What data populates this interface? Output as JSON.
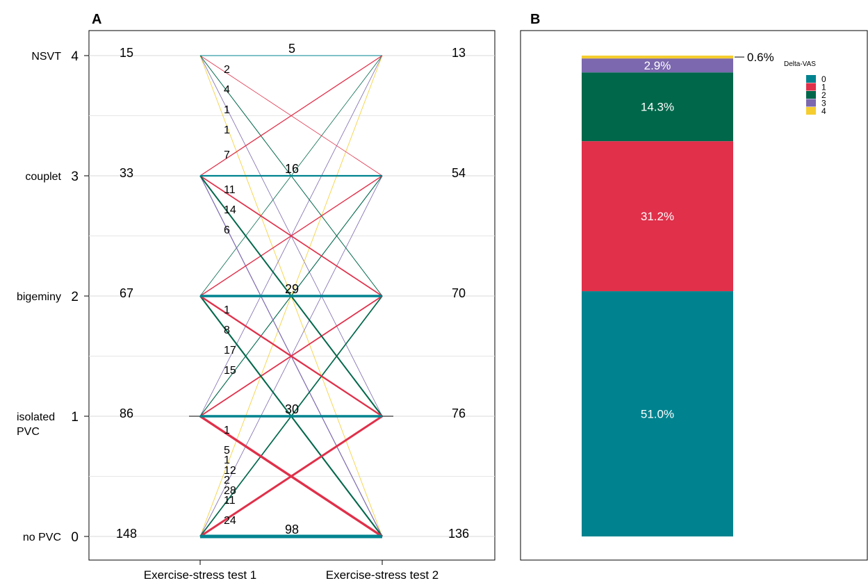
{
  "panel_a_letter": "A",
  "panel_b_letter": "B",
  "chart_data": [
    {
      "type": "line",
      "panel": "A",
      "x_categories": [
        "Exercise-stress test 1",
        "Exercise-stress test 2"
      ],
      "y_levels": [
        {
          "value": 0,
          "label": "no PVC"
        },
        {
          "value": 1,
          "label": "isolated PVC"
        },
        {
          "value": 2,
          "label": "bigeminy"
        },
        {
          "value": 3,
          "label": "couplet"
        },
        {
          "value": 4,
          "label": "NSVT"
        }
      ],
      "ylim": [
        0,
        4
      ],
      "totals_test1": {
        "4": "15",
        "3": "33",
        "2": "67",
        "1": "86",
        "0": "148"
      },
      "totals_test2": {
        "4": "13",
        "3": "54",
        "2": "70",
        "1": "76",
        "0": "136"
      },
      "colors": {
        "0": "#00838F",
        "1": "#E0304A",
        "2": "#00674A",
        "3": "#7B68AE",
        "4": "#F5CD2F"
      },
      "transitions": [
        {
          "from": 4,
          "to": 4,
          "n": 5
        },
        {
          "from": 4,
          "to": 3,
          "n": 2
        },
        {
          "from": 4,
          "to": 2,
          "n": 4
        },
        {
          "from": 4,
          "to": 1,
          "n": 1
        },
        {
          "from": 4,
          "to": 0,
          "n": 1
        },
        {
          "from": 3,
          "to": 4,
          "n": 7
        },
        {
          "from": 3,
          "to": 3,
          "n": 16
        },
        {
          "from": 3,
          "to": 2,
          "n": 11
        },
        {
          "from": 3,
          "to": 1,
          "n": 14
        },
        {
          "from": 3,
          "to": 0,
          "n": 6
        },
        {
          "from": 2,
          "to": 4,
          "n": 1
        },
        {
          "from": 2,
          "to": 3,
          "n": 8
        },
        {
          "from": 2,
          "to": 2,
          "n": 29
        },
        {
          "from": 2,
          "to": 1,
          "n": 17
        },
        {
          "from": 2,
          "to": 0,
          "n": 15
        },
        {
          "from": 1,
          "to": 4,
          "n": 1
        },
        {
          "from": 1,
          "to": 3,
          "n": 5
        },
        {
          "from": 1,
          "to": 2,
          "n": 12
        },
        {
          "from": 1,
          "to": 1,
          "n": 30
        },
        {
          "from": 1,
          "to": 0,
          "n": 28
        },
        {
          "from": 0,
          "to": 4,
          "n": 1
        },
        {
          "from": 0,
          "to": 3,
          "n": 2
        },
        {
          "from": 0,
          "to": 2,
          "n": 11
        },
        {
          "from": 0,
          "to": 1,
          "n": 24
        },
        {
          "from": 0,
          "to": 0,
          "n": 98
        }
      ]
    },
    {
      "type": "bar",
      "panel": "B",
      "stacked": true,
      "legend_title": "Delta-VAS",
      "legend_position": "top-right",
      "series": [
        {
          "name": "0",
          "value": 51.0,
          "label": "51.0%",
          "color": "#00838F"
        },
        {
          "name": "1",
          "value": 31.2,
          "label": "31.2%",
          "color": "#E0304A"
        },
        {
          "name": "2",
          "value": 14.3,
          "label": "14.3%",
          "color": "#00674A"
        },
        {
          "name": "3",
          "value": 2.9,
          "label": "2.9%",
          "color": "#7B68AE"
        },
        {
          "name": "4",
          "value": 0.6,
          "label": "0.6%",
          "color": "#F5CD2F"
        }
      ],
      "ylim": [
        0,
        100
      ]
    }
  ]
}
